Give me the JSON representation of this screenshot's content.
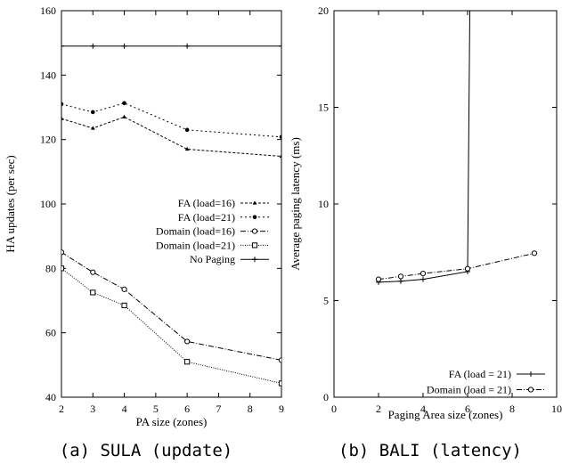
{
  "chart_data": [
    {
      "type": "line",
      "caption": "(a) SULA (update)",
      "xlabel": "PA size (zones)",
      "ylabel": "HA updates (per sec)",
      "xlim": [
        2,
        9
      ],
      "ylim": [
        40,
        160
      ],
      "xticks": [
        "2",
        "3",
        "4",
        "5",
        "6",
        "7",
        "8",
        "9"
      ],
      "yticks": [
        "40",
        "60",
        "80",
        "100",
        "120",
        "140",
        "160"
      ],
      "legend_position": "center-right",
      "series": [
        {
          "name": "FA (load=16)",
          "x": [
            2,
            3,
            4,
            6,
            9
          ],
          "y": [
            126.5,
            123.5,
            127.0,
            117.0,
            114.8
          ],
          "marker": "triangle",
          "dash": "3,2"
        },
        {
          "name": "FA (load=21)",
          "x": [
            2,
            3,
            4,
            6,
            9
          ],
          "y": [
            131.0,
            128.5,
            131.3,
            123.0,
            120.8
          ],
          "marker": "dot",
          "dash": "2,3"
        },
        {
          "name": "Domain (load=16)",
          "x": [
            2,
            3,
            4,
            6,
            9
          ],
          "y": [
            85.0,
            78.8,
            73.5,
            57.3,
            51.5
          ],
          "marker": "circle",
          "dash": "6,2,1,2"
        },
        {
          "name": "Domain (load=21)",
          "x": [
            2,
            3,
            4,
            6,
            9
          ],
          "y": [
            80.0,
            72.5,
            68.5,
            51.0,
            44.3
          ],
          "marker": "square",
          "dash": "1,1.5"
        },
        {
          "name": "No Paging",
          "x": [
            2,
            3,
            4,
            6,
            9
          ],
          "y": [
            149,
            149,
            149,
            149,
            149
          ],
          "marker": "plus",
          "dash": ""
        }
      ]
    },
    {
      "type": "line",
      "caption": "(b) BALI (latency)",
      "xlabel": "Paging Area size (zones)",
      "ylabel": "Average paging latency (ms)",
      "xlim": [
        0,
        10
      ],
      "ylim": [
        0,
        20
      ],
      "xticks": [
        "0",
        "2",
        "4",
        "6",
        "8",
        "10"
      ],
      "yticks": [
        "0",
        "5",
        "10",
        "15",
        "20"
      ],
      "legend_position": "bottom-right",
      "series": [
        {
          "name": "FA (load = 21)",
          "x": [
            2,
            3,
            4,
            6,
            6.1
          ],
          "y": [
            5.95,
            6.0,
            6.1,
            6.5,
            20
          ],
          "marker": "plus",
          "dash": ""
        },
        {
          "name": "Domain (load = 21)",
          "x": [
            2,
            3,
            4,
            6,
            9
          ],
          "y": [
            6.1,
            6.25,
            6.4,
            6.65,
            7.45
          ],
          "marker": "circle",
          "dash": "6,2,1,2"
        }
      ]
    }
  ]
}
